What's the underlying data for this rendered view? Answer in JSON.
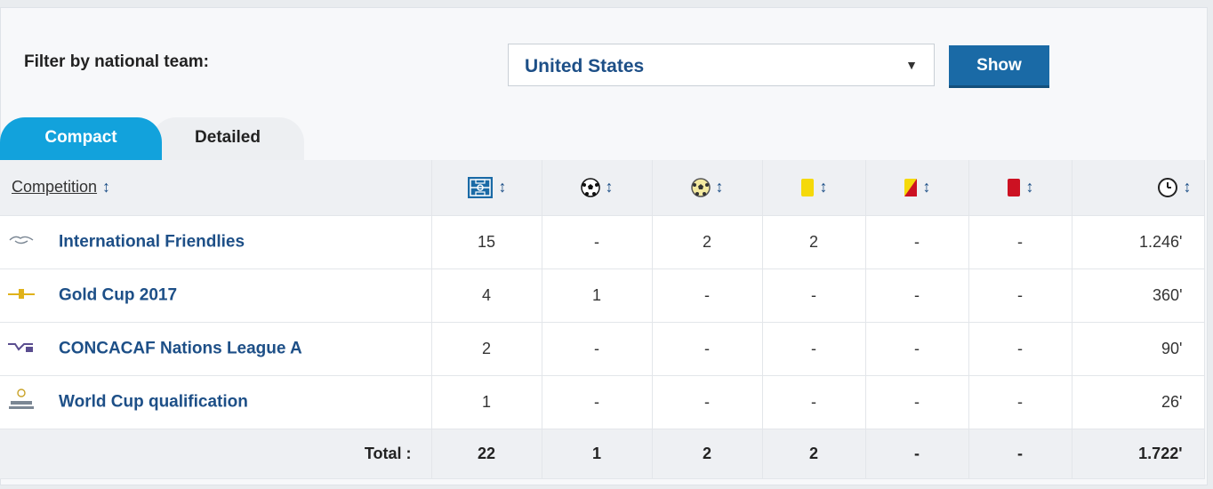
{
  "filter": {
    "label": "Filter by national team:",
    "selected": "United States",
    "button": "Show"
  },
  "tabs": [
    {
      "label": "Compact",
      "active": true
    },
    {
      "label": "Detailed",
      "active": false
    }
  ],
  "table": {
    "competition_header": "Competition",
    "header_icons": [
      "appearances-pitch-icon",
      "goals-ball-icon",
      "assists-ball-icon",
      "yellow-card-icon",
      "second-yellow-card-icon",
      "red-card-icon",
      "minutes-clock-icon"
    ],
    "rows": [
      {
        "name": "International Friendlies",
        "icon": "handshake-icon",
        "apps": "15",
        "goals": "-",
        "assists": "2",
        "yellow": "2",
        "second_yellow": "-",
        "red": "-",
        "minutes": "1.246'"
      },
      {
        "name": "Gold Cup 2017",
        "icon": "gold-cup-logo-icon",
        "apps": "4",
        "goals": "1",
        "assists": "-",
        "yellow": "-",
        "second_yellow": "-",
        "red": "-",
        "minutes": "360'"
      },
      {
        "name": "CONCACAF Nations League A",
        "icon": "nations-league-logo-icon",
        "apps": "2",
        "goals": "-",
        "assists": "-",
        "yellow": "-",
        "second_yellow": "-",
        "red": "-",
        "minutes": "90'"
      },
      {
        "name": "World Cup qualification",
        "icon": "world-cup-trophy-icon",
        "apps": "1",
        "goals": "-",
        "assists": "-",
        "yellow": "-",
        "second_yellow": "-",
        "red": "-",
        "minutes": "26'"
      }
    ],
    "total": {
      "label": "Total :",
      "apps": "22",
      "goals": "1",
      "assists": "2",
      "yellow": "2",
      "second_yellow": "-",
      "red": "-",
      "minutes": "1.722'"
    }
  },
  "colors": {
    "accent": "#12a2dc",
    "button": "#1a6aa6",
    "link": "#1d4f87",
    "yellow_card": "#f5d90a",
    "red_card": "#cc1122"
  }
}
